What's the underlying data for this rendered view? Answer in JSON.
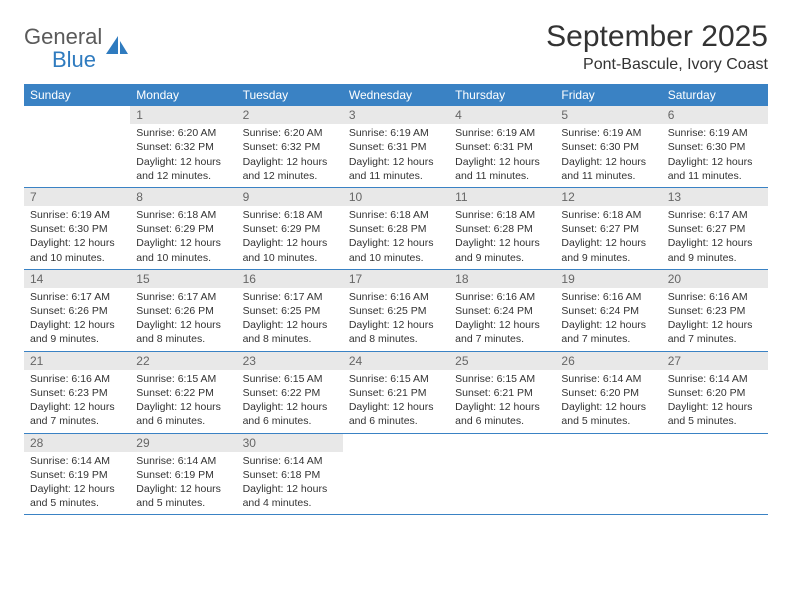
{
  "logo": {
    "text1": "General",
    "text2": "Blue"
  },
  "title": "September 2025",
  "location": "Pont-Bascule, Ivory Coast",
  "headerColor": "#3a82c4",
  "dayHeaders": [
    "Sunday",
    "Monday",
    "Tuesday",
    "Wednesday",
    "Thursday",
    "Friday",
    "Saturday"
  ],
  "weeks": [
    [
      null,
      {
        "n": "1",
        "sr": "6:20 AM",
        "ss": "6:32 PM",
        "dl": "12 hours and 12 minutes."
      },
      {
        "n": "2",
        "sr": "6:20 AM",
        "ss": "6:32 PM",
        "dl": "12 hours and 12 minutes."
      },
      {
        "n": "3",
        "sr": "6:19 AM",
        "ss": "6:31 PM",
        "dl": "12 hours and 11 minutes."
      },
      {
        "n": "4",
        "sr": "6:19 AM",
        "ss": "6:31 PM",
        "dl": "12 hours and 11 minutes."
      },
      {
        "n": "5",
        "sr": "6:19 AM",
        "ss": "6:30 PM",
        "dl": "12 hours and 11 minutes."
      },
      {
        "n": "6",
        "sr": "6:19 AM",
        "ss": "6:30 PM",
        "dl": "12 hours and 11 minutes."
      }
    ],
    [
      {
        "n": "7",
        "sr": "6:19 AM",
        "ss": "6:30 PM",
        "dl": "12 hours and 10 minutes."
      },
      {
        "n": "8",
        "sr": "6:18 AM",
        "ss": "6:29 PM",
        "dl": "12 hours and 10 minutes."
      },
      {
        "n": "9",
        "sr": "6:18 AM",
        "ss": "6:29 PM",
        "dl": "12 hours and 10 minutes."
      },
      {
        "n": "10",
        "sr": "6:18 AM",
        "ss": "6:28 PM",
        "dl": "12 hours and 10 minutes."
      },
      {
        "n": "11",
        "sr": "6:18 AM",
        "ss": "6:28 PM",
        "dl": "12 hours and 9 minutes."
      },
      {
        "n": "12",
        "sr": "6:18 AM",
        "ss": "6:27 PM",
        "dl": "12 hours and 9 minutes."
      },
      {
        "n": "13",
        "sr": "6:17 AM",
        "ss": "6:27 PM",
        "dl": "12 hours and 9 minutes."
      }
    ],
    [
      {
        "n": "14",
        "sr": "6:17 AM",
        "ss": "6:26 PM",
        "dl": "12 hours and 9 minutes."
      },
      {
        "n": "15",
        "sr": "6:17 AM",
        "ss": "6:26 PM",
        "dl": "12 hours and 8 minutes."
      },
      {
        "n": "16",
        "sr": "6:17 AM",
        "ss": "6:25 PM",
        "dl": "12 hours and 8 minutes."
      },
      {
        "n": "17",
        "sr": "6:16 AM",
        "ss": "6:25 PM",
        "dl": "12 hours and 8 minutes."
      },
      {
        "n": "18",
        "sr": "6:16 AM",
        "ss": "6:24 PM",
        "dl": "12 hours and 7 minutes."
      },
      {
        "n": "19",
        "sr": "6:16 AM",
        "ss": "6:24 PM",
        "dl": "12 hours and 7 minutes."
      },
      {
        "n": "20",
        "sr": "6:16 AM",
        "ss": "6:23 PM",
        "dl": "12 hours and 7 minutes."
      }
    ],
    [
      {
        "n": "21",
        "sr": "6:16 AM",
        "ss": "6:23 PM",
        "dl": "12 hours and 7 minutes."
      },
      {
        "n": "22",
        "sr": "6:15 AM",
        "ss": "6:22 PM",
        "dl": "12 hours and 6 minutes."
      },
      {
        "n": "23",
        "sr": "6:15 AM",
        "ss": "6:22 PM",
        "dl": "12 hours and 6 minutes."
      },
      {
        "n": "24",
        "sr": "6:15 AM",
        "ss": "6:21 PM",
        "dl": "12 hours and 6 minutes."
      },
      {
        "n": "25",
        "sr": "6:15 AM",
        "ss": "6:21 PM",
        "dl": "12 hours and 6 minutes."
      },
      {
        "n": "26",
        "sr": "6:14 AM",
        "ss": "6:20 PM",
        "dl": "12 hours and 5 minutes."
      },
      {
        "n": "27",
        "sr": "6:14 AM",
        "ss": "6:20 PM",
        "dl": "12 hours and 5 minutes."
      }
    ],
    [
      {
        "n": "28",
        "sr": "6:14 AM",
        "ss": "6:19 PM",
        "dl": "12 hours and 5 minutes."
      },
      {
        "n": "29",
        "sr": "6:14 AM",
        "ss": "6:19 PM",
        "dl": "12 hours and 5 minutes."
      },
      {
        "n": "30",
        "sr": "6:14 AM",
        "ss": "6:18 PM",
        "dl": "12 hours and 4 minutes."
      },
      null,
      null,
      null,
      null
    ]
  ],
  "labels": {
    "sunrise": "Sunrise:",
    "sunset": "Sunset:",
    "daylight": "Daylight:"
  }
}
